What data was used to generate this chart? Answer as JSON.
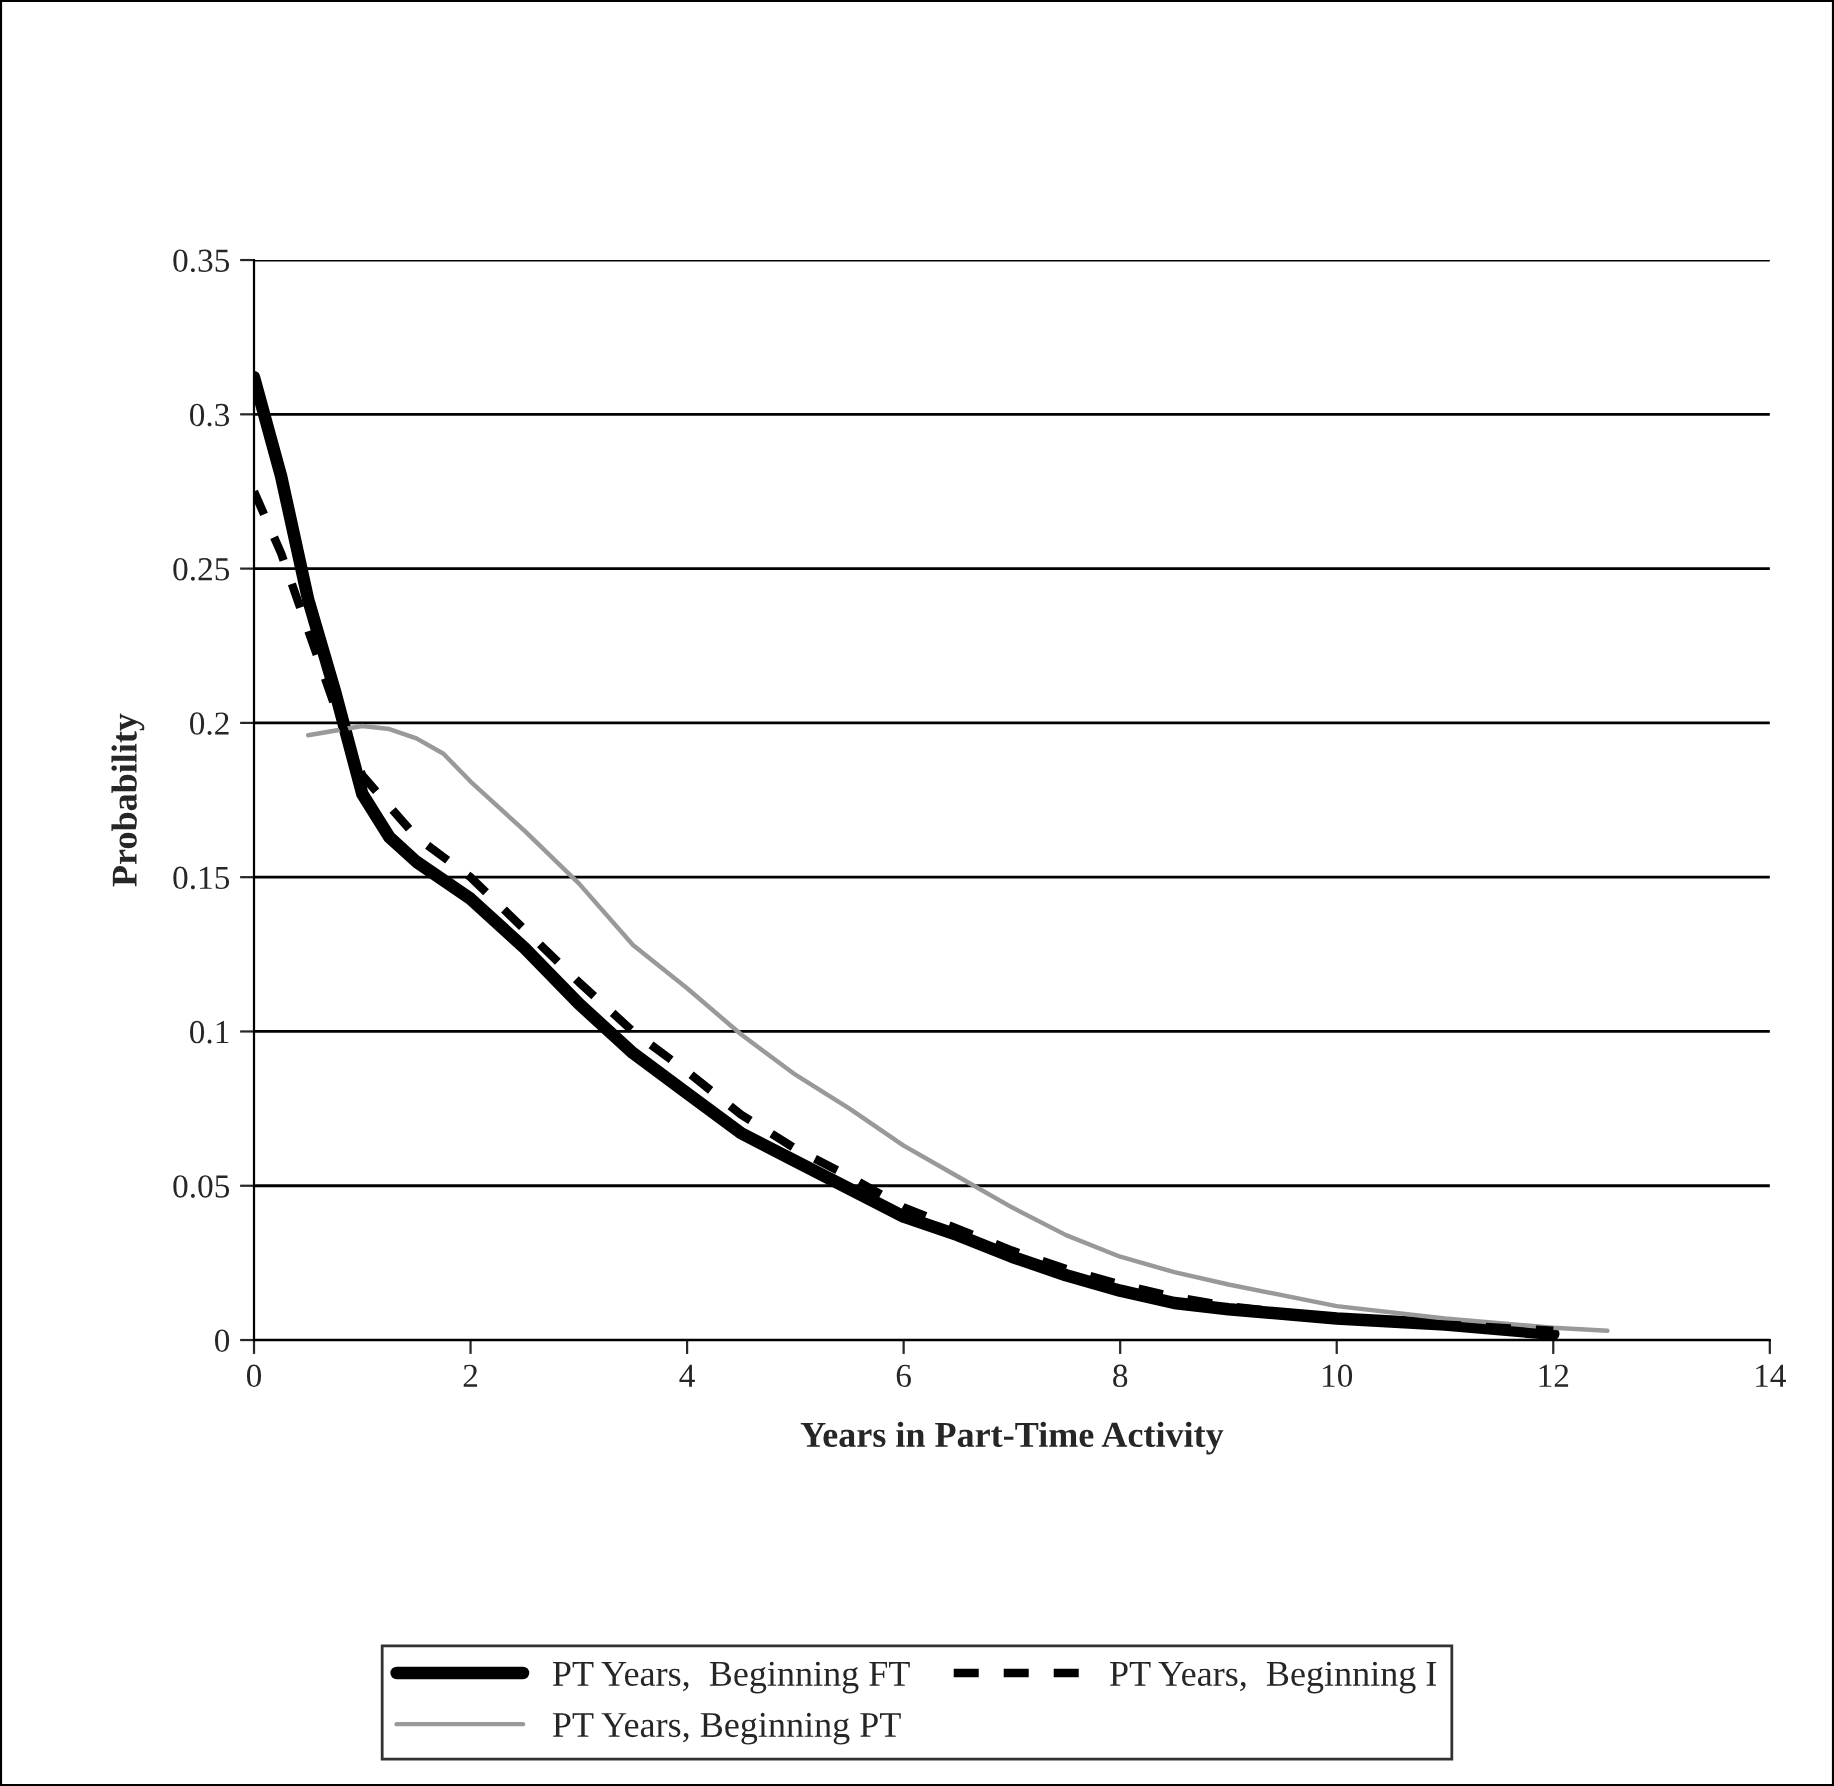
{
  "chart_data": {
    "type": "line",
    "xlabel": "Years in Part-Time Activity",
    "ylabel": "Probability",
    "xlim": [
      0,
      14
    ],
    "xticks": [
      0,
      2,
      4,
      6,
      8,
      10,
      12,
      14
    ],
    "ylim": [
      0,
      0.35
    ],
    "yticks": [
      0,
      0.05,
      0.1,
      0.15,
      0.2,
      0.25,
      0.3,
      0.35
    ],
    "grid": "y",
    "legend": "bottom",
    "marker": "none",
    "series": [
      {
        "name": "PT Years,  Beginning FT",
        "color": "#000000",
        "line_style": "solid",
        "x": [
          0,
          0.25,
          0.5,
          0.75,
          1,
          1.25,
          1.5,
          2,
          2.5,
          3,
          3.5,
          4,
          4.5,
          5,
          5.5,
          6,
          6.5,
          7,
          7.5,
          8,
          8.5,
          9,
          10,
          11,
          12
        ],
        "values": [
          0.312,
          0.28,
          0.24,
          0.21,
          0.177,
          0.163,
          0.155,
          0.143,
          0.127,
          0.109,
          0.093,
          0.08,
          0.067,
          0.058,
          0.049,
          0.04,
          0.034,
          0.027,
          0.021,
          0.016,
          0.012,
          0.01,
          0.007,
          0.005,
          0.002
        ]
      },
      {
        "name": "PT Years, Beginning PT",
        "color": "#999999",
        "line_style": "solid",
        "x": [
          0.5,
          1,
          1.25,
          1.5,
          1.75,
          2,
          2.5,
          3,
          3.5,
          4,
          4.5,
          5,
          5.5,
          6,
          6.5,
          7,
          7.5,
          8,
          8.5,
          9,
          10,
          11,
          12,
          12.5
        ],
        "values": [
          0.196,
          0.199,
          0.198,
          0.195,
          0.19,
          0.181,
          0.165,
          0.148,
          0.128,
          0.114,
          0.099,
          0.086,
          0.075,
          0.063,
          0.053,
          0.043,
          0.034,
          0.027,
          0.022,
          0.018,
          0.011,
          0.007,
          0.004,
          0.003
        ]
      },
      {
        "name": "PT Years,  Beginning I",
        "color": "#000000",
        "line_style": "dashed",
        "x": [
          0,
          0.25,
          0.5,
          0.75,
          1,
          1.5,
          2,
          2.5,
          3,
          3.5,
          4,
          4.5,
          5,
          5.5,
          6,
          6.5,
          7,
          7.5,
          8,
          8.5,
          9,
          10,
          11,
          12
        ],
        "values": [
          0.275,
          0.255,
          0.23,
          0.205,
          0.183,
          0.163,
          0.15,
          0.133,
          0.116,
          0.1,
          0.087,
          0.073,
          0.062,
          0.053,
          0.043,
          0.036,
          0.029,
          0.023,
          0.018,
          0.014,
          0.011,
          0.007,
          0.005,
          0.003
        ]
      }
    ]
  }
}
